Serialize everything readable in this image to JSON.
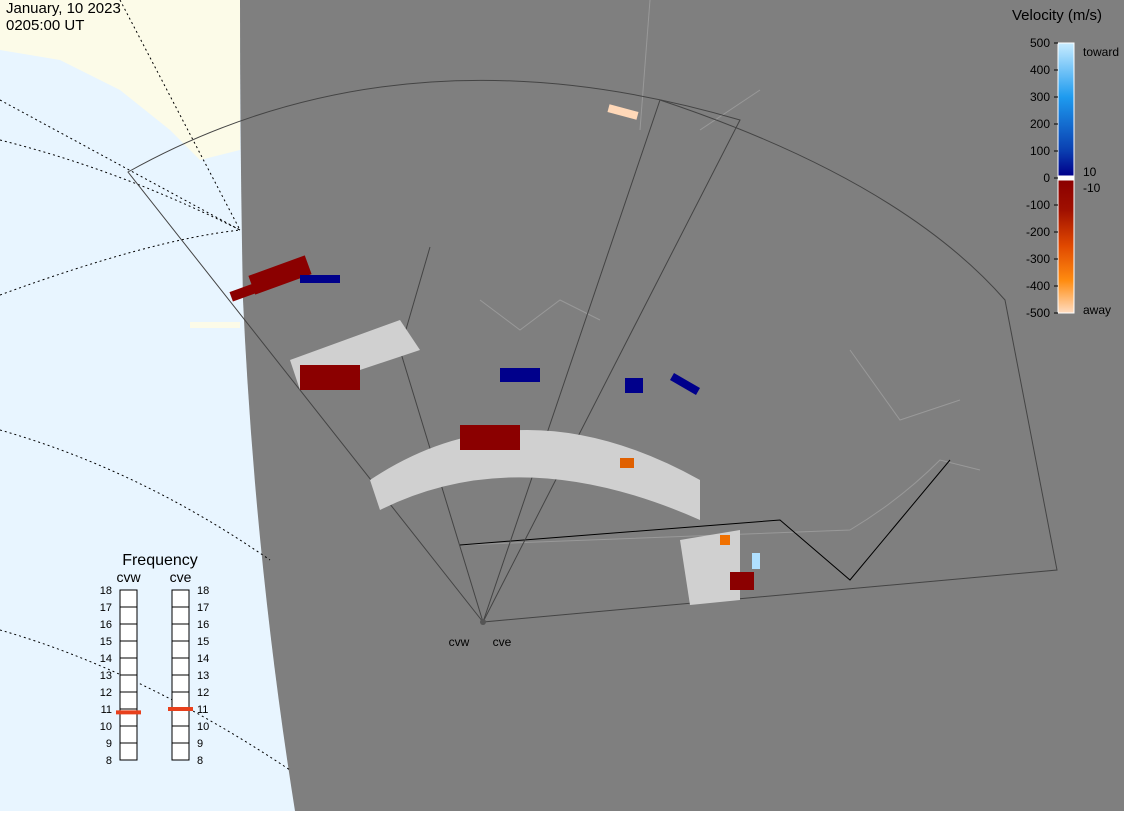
{
  "header": {
    "date": "January, 10 2023",
    "time": "0205:00 UT"
  },
  "colorbar": {
    "title": "Velocity (m/s)",
    "lim": [
      -500,
      500
    ],
    "ticks": [
      500,
      400,
      300,
      200,
      100,
      0,
      -100,
      -200,
      -300,
      -400,
      -500
    ],
    "toward": "toward",
    "away": "away",
    "zero_upper": "10",
    "zero_lower": "-10"
  },
  "frequency": {
    "title": "Frequency",
    "lim": [
      8,
      18
    ],
    "ticks": [
      18,
      17,
      16,
      15,
      14,
      13,
      12,
      11,
      10,
      9,
      8
    ],
    "radars": [
      {
        "name": "cvw",
        "value": 10.8,
        "color": "#e8401c"
      },
      {
        "name": "cve",
        "value": 11,
        "color": "#e8401c"
      }
    ]
  },
  "stations": [
    "cvw",
    "cve"
  ]
}
